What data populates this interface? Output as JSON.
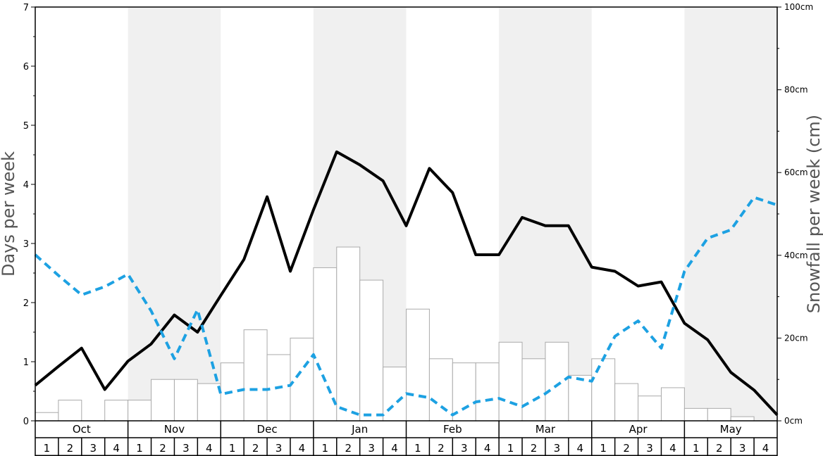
{
  "chart_data": {
    "type": "bar+line",
    "months": [
      "Oct",
      "Nov",
      "Dec",
      "Jan",
      "Feb",
      "Mar",
      "Apr",
      "May"
    ],
    "weeks": [
      "1",
      "2",
      "3",
      "4"
    ],
    "left_axis": {
      "label": "Days per week",
      "ylim": [
        0,
        7
      ],
      "ticks": [
        "0",
        "1",
        "2",
        "3",
        "4",
        "5",
        "6",
        "7"
      ]
    },
    "right_axis": {
      "label": "Snowfall per week (cm)",
      "ylim": [
        0,
        100
      ],
      "ticks": [
        "0cm",
        "20cm",
        "40cm",
        "60cm",
        "80cm",
        "100cm"
      ],
      "tick_values": [
        0,
        20,
        40,
        60,
        80,
        100
      ]
    },
    "series": [
      {
        "kind": "bar",
        "axis": "right",
        "values": [
          2,
          5,
          0,
          5,
          5,
          10,
          10,
          9,
          14,
          22,
          16,
          20,
          37,
          42,
          34,
          13,
          27,
          15,
          14,
          14,
          19,
          15,
          19,
          11,
          15,
          9,
          6,
          8,
          3,
          3,
          1,
          0
        ]
      },
      {
        "kind": "line",
        "axis": "left",
        "style": "solid",
        "color": "#000000",
        "values": [
          0.6,
          0.92,
          1.23,
          0.53,
          1.01,
          1.3,
          1.79,
          1.5,
          2.12,
          2.73,
          3.79,
          2.53,
          3.57,
          4.55,
          4.33,
          4.06,
          3.3,
          4.27,
          3.86,
          2.81,
          2.81,
          3.44,
          3.3,
          3.3,
          2.6,
          2.53,
          2.28,
          2.35,
          1.65,
          1.37,
          0.82,
          0.52,
          0.1
        ]
      },
      {
        "kind": "line",
        "axis": "left",
        "style": "dashed",
        "color": "#1da1e2",
        "values": [
          2.81,
          2.46,
          2.13,
          2.27,
          2.48,
          1.86,
          1.05,
          1.88,
          0.45,
          0.53,
          0.53,
          0.6,
          1.12,
          0.24,
          0.1,
          0.1,
          0.46,
          0.39,
          0.1,
          0.32,
          0.38,
          0.24,
          0.46,
          0.74,
          0.67,
          1.43,
          1.69,
          1.23,
          2.53,
          3.09,
          3.23,
          3.78,
          3.65
        ]
      }
    ],
    "colors": {
      "band": "#f0f0f0",
      "bar_fill": "#ffffff",
      "bar_stroke": "#aaaaaa",
      "solid_line": "#000000",
      "dashed_line": "#1da1e2"
    },
    "grid": false
  }
}
